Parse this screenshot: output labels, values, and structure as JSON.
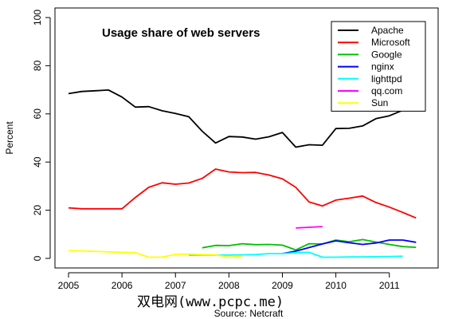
{
  "chart_data": {
    "type": "line",
    "title": "Usage share of web servers",
    "xlabel": "Source:  Netcraft",
    "ylabel": "Percent",
    "xlim": [
      2005,
      2011.6
    ],
    "ylim": [
      0,
      100
    ],
    "xticks": [
      "2005",
      "2006",
      "2007",
      "2008",
      "2009",
      "2010",
      "2011"
    ],
    "yticks": [
      "0",
      "20",
      "40",
      "60",
      "80",
      "100"
    ],
    "grid": false,
    "legend_position": "top-right",
    "series": [
      {
        "name": "Apache",
        "color": "#000000",
        "x": [
          2005,
          2005.25,
          2005.5,
          2005.75,
          2006,
          2006.25,
          2006.5,
          2006.75,
          2007,
          2007.25,
          2007.5,
          2007.75,
          2008,
          2008.25,
          2008.5,
          2008.75,
          2009,
          2009.25,
          2009.5,
          2009.75,
          2010,
          2010.25,
          2010.5,
          2010.75,
          2011,
          2011.25,
          2011.5
        ],
        "y": [
          68.4,
          69.3,
          69.6,
          69.9,
          67,
          62.8,
          63,
          61.3,
          60.2,
          58.8,
          52.8,
          47.9,
          50.6,
          50.4,
          49.5,
          50.5,
          52.3,
          46.2,
          47.2,
          47,
          53.9,
          54,
          55,
          58,
          59.2,
          61.5,
          66
        ]
      },
      {
        "name": "Microsoft",
        "color": "#ff0000",
        "x": [
          2005,
          2005.25,
          2005.5,
          2005.75,
          2006,
          2006.25,
          2006.5,
          2006.75,
          2007,
          2007.25,
          2007.5,
          2007.75,
          2008,
          2008.25,
          2008.5,
          2008.75,
          2009,
          2009.25,
          2009.5,
          2009.75,
          2010,
          2010.25,
          2010.5,
          2010.75,
          2011,
          2011.25,
          2011.5
        ],
        "y": [
          21,
          20.6,
          20.6,
          20.6,
          20.6,
          25.3,
          29.5,
          31.4,
          30.8,
          31.3,
          33.2,
          37.1,
          35.9,
          35.6,
          35.7,
          34.6,
          33,
          29.5,
          23.4,
          21.8,
          24.2,
          25,
          25.9,
          23.2,
          21.3,
          19.1,
          16.8
        ]
      },
      {
        "name": "Google",
        "color": "#00c000",
        "x": [
          2007.5,
          2007.75,
          2008,
          2008.25,
          2008.5,
          2008.75,
          2009,
          2009.25,
          2009.5,
          2009.75,
          2010,
          2010.25,
          2010.5,
          2010.75,
          2011,
          2011.25,
          2011.5
        ],
        "y": [
          4.4,
          5.4,
          5.3,
          6.1,
          5.7,
          5.8,
          5.5,
          3.5,
          6.1,
          6,
          7.6,
          6.9,
          7.8,
          6.8,
          5.8,
          4.9,
          4.6
        ]
      },
      {
        "name": "nginx",
        "color": "#0000ff",
        "x": [
          2009,
          2009.25,
          2009.5,
          2009.75,
          2010,
          2010.25,
          2010.5,
          2010.75,
          2011,
          2011.25,
          2011.5
        ],
        "y": [
          2,
          3,
          4.5,
          6,
          7.3,
          6.5,
          5.8,
          6.4,
          7.6,
          7.6,
          6.7
        ]
      },
      {
        "name": "lighttpd",
        "color": "#00ffff",
        "x": [
          2007.25,
          2007.5,
          2007.75,
          2008,
          2008.25,
          2008.5,
          2008.75,
          2009,
          2009.25,
          2009.5,
          2009.75,
          2010,
          2010.25,
          2010.5,
          2010.75,
          2011,
          2011.25
        ],
        "y": [
          1.3,
          1.4,
          1.4,
          1.4,
          1.5,
          1.6,
          2,
          2,
          2.4,
          2.5,
          0.5,
          0.5,
          0.6,
          0.6,
          0.7,
          0.8,
          0.9
        ]
      },
      {
        "name": "qq.com",
        "color": "#ff00ff",
        "x": [
          2009.25,
          2009.5,
          2009.75
        ],
        "y": [
          12.6,
          12.9,
          13.2
        ]
      },
      {
        "name": "Sun",
        "color": "#ffff00",
        "x": [
          2005,
          2005.25,
          2005.5,
          2005.75,
          2006,
          2006.25,
          2006.5,
          2006.75,
          2007,
          2007.25,
          2007.5,
          2007.75,
          2008,
          2008.25
        ],
        "y": [
          3.2,
          3.1,
          2.9,
          2.7,
          2.5,
          2.4,
          0.5,
          0.5,
          1.7,
          1.8,
          1.6,
          1.5,
          0.5,
          0.9
        ]
      }
    ],
    "watermark": "双电网(www.pcpc.me)"
  }
}
